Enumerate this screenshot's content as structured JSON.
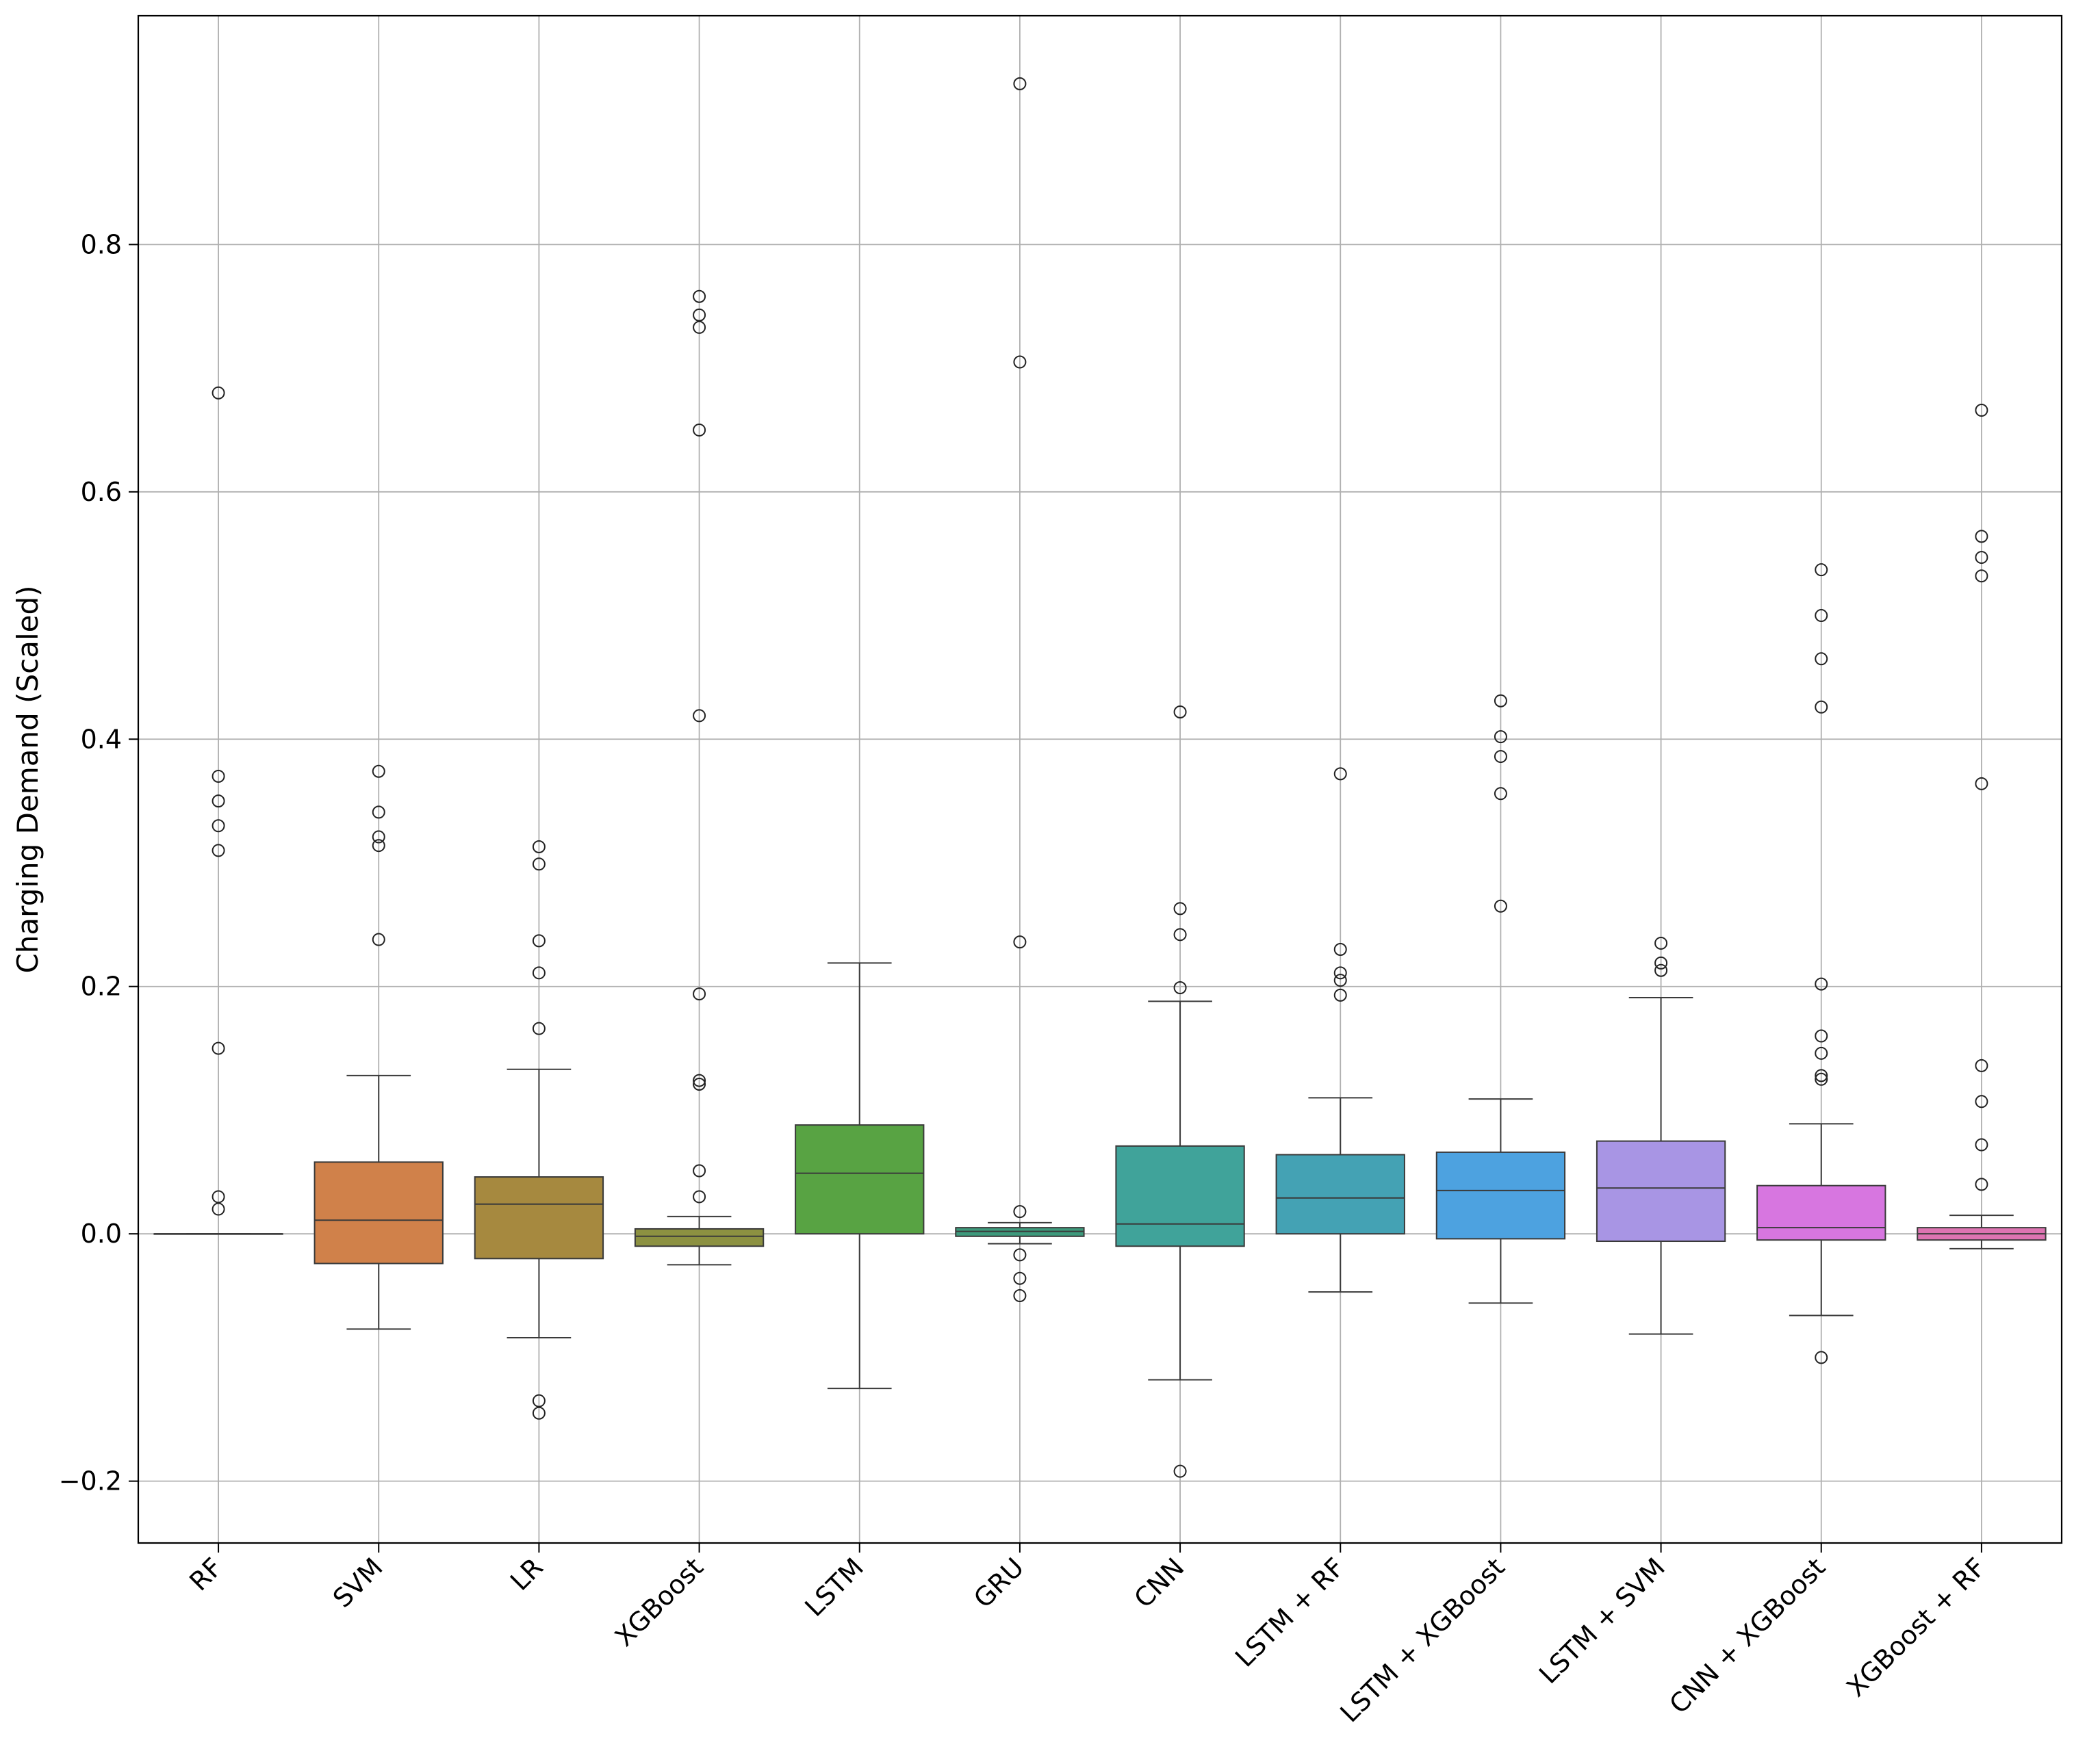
{
  "chart_data": {
    "type": "box",
    "title": "",
    "xlabel": "",
    "ylabel": "Charging Demand (Scaled)",
    "ylim": [
      -0.25,
      0.985
    ],
    "yticks": [
      -0.2,
      0.0,
      0.2,
      0.4,
      0.6,
      0.8
    ],
    "ytick_labels": [
      "−0.2",
      "0.0",
      "0.2",
      "0.4",
      "0.6",
      "0.8"
    ],
    "grid": true,
    "categories": [
      "RF",
      "SVM",
      "LR",
      "XGBoost",
      "LSTM",
      "GRU",
      "CNN",
      "LSTM + RF",
      "LSTM + XGBoost",
      "LSTM + SVM",
      "CNN + XGBoost",
      "XGBoost + RF"
    ],
    "colors": [
      "#3274a1",
      "#d0814a",
      "#a6893f",
      "#8c9141",
      "#58a343",
      "#3d9a7c",
      "#40a39a",
      "#44a2b4",
      "#4da2e0",
      "#a895e4",
      "#d776e0",
      "#dd74b2"
    ],
    "series": [
      {
        "name": "RF",
        "whislo": 0.0,
        "q1": 0.0,
        "med": 0.0,
        "q3": 0.0,
        "whishi": 0.0,
        "fliers": [
          0.68,
          0.37,
          0.35,
          0.33,
          0.31,
          0.15,
          0.03,
          0.02
        ]
      },
      {
        "name": "SVM",
        "whislo": -0.077,
        "q1": -0.024,
        "med": 0.011,
        "q3": 0.058,
        "whishi": 0.128,
        "fliers": [
          0.374,
          0.341,
          0.321,
          0.314,
          0.238
        ]
      },
      {
        "name": "LR",
        "whislo": -0.084,
        "q1": -0.02,
        "med": 0.024,
        "q3": 0.046,
        "whishi": 0.133,
        "fliers": [
          0.313,
          0.299,
          0.237,
          0.211,
          0.166,
          -0.135,
          -0.145
        ]
      },
      {
        "name": "XGBoost",
        "whislo": -0.025,
        "q1": -0.01,
        "med": -0.002,
        "q3": 0.004,
        "whishi": 0.014,
        "fliers": [
          0.758,
          0.743,
          0.733,
          0.65,
          0.419,
          0.194,
          0.124,
          0.121,
          0.051,
          0.03
        ]
      },
      {
        "name": "LSTM",
        "whislo": -0.125,
        "q1": 0.0,
        "med": 0.049,
        "q3": 0.088,
        "whishi": 0.219,
        "fliers": []
      },
      {
        "name": "GRU",
        "whislo": -0.008,
        "q1": -0.002,
        "med": 0.002,
        "q3": 0.005,
        "whishi": 0.009,
        "fliers": [
          0.93,
          0.705,
          0.236,
          0.018,
          -0.017,
          -0.036,
          -0.05
        ]
      },
      {
        "name": "CNN",
        "whislo": -0.118,
        "q1": -0.01,
        "med": 0.008,
        "q3": 0.071,
        "whishi": 0.188,
        "fliers": [
          0.422,
          0.263,
          0.242,
          0.199,
          -0.192
        ]
      },
      {
        "name": "LSTM + RF",
        "whislo": -0.047,
        "q1": 0.0,
        "med": 0.029,
        "q3": 0.064,
        "whishi": 0.11,
        "fliers": [
          0.372,
          0.23,
          0.211,
          0.205,
          0.193
        ]
      },
      {
        "name": "LSTM + XGBoost",
        "whislo": -0.056,
        "q1": -0.004,
        "med": 0.035,
        "q3": 0.066,
        "whishi": 0.109,
        "fliers": [
          0.431,
          0.402,
          0.386,
          0.356,
          0.265
        ]
      },
      {
        "name": "LSTM + SVM",
        "whislo": -0.081,
        "q1": -0.006,
        "med": 0.037,
        "q3": 0.075,
        "whishi": 0.191,
        "fliers": [
          0.235,
          0.219,
          0.213
        ]
      },
      {
        "name": "CNN + XGBoost",
        "whislo": -0.066,
        "q1": -0.005,
        "med": 0.005,
        "q3": 0.039,
        "whishi": 0.089,
        "fliers": [
          0.537,
          0.5,
          0.465,
          0.426,
          0.202,
          0.16,
          0.146,
          0.128,
          0.125,
          -0.1
        ]
      },
      {
        "name": "XGBoost + RF",
        "whislo": -0.012,
        "q1": -0.005,
        "med": 0.0,
        "q3": 0.005,
        "whishi": 0.015,
        "fliers": [
          0.666,
          0.564,
          0.547,
          0.532,
          0.364,
          0.136,
          0.107,
          0.072,
          0.04
        ]
      }
    ]
  }
}
